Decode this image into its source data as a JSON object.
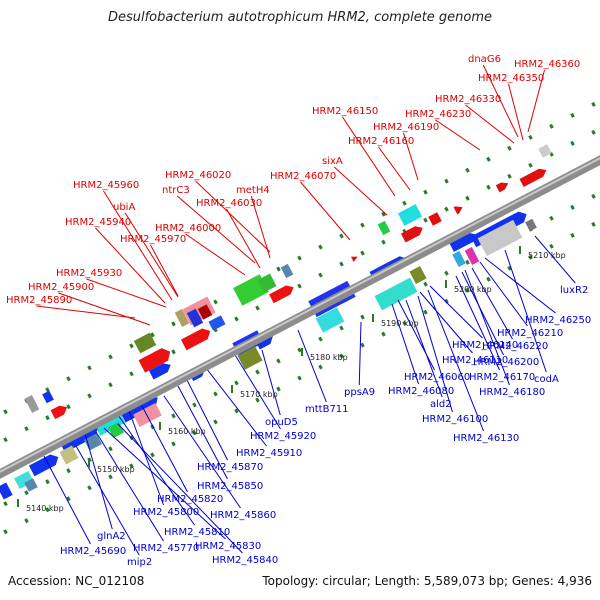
{
  "title": "Desulfobacterium autotrophicum HRM2, complete genome",
  "footer": {
    "accession": "Accession: NC_012108",
    "summary": "Topology: circular; Length: 5,589,073 bp; Genes: 4,936"
  },
  "colors": {
    "top_labels": "#dd0000",
    "bottom_labels": "#0000cc",
    "backbone": "#8c8c8c"
  },
  "kbp_labels": [
    "5140 kbp",
    "5150 kbp",
    "5160 kbp",
    "5170 kbp",
    "5180 kbp",
    "5190 kbp",
    "5200 kbp",
    "5210 kbp"
  ],
  "top_labels": [
    "dnaG6",
    "HRM2_46360",
    "HRM2_46350",
    "HRM2_46330",
    "HRM2_46230",
    "HRM2_46150",
    "HRM2_46190",
    "HRM2_46160",
    "sixA",
    "HRM2_46020",
    "HRM2_46070",
    "ntrC3",
    "metH4",
    "HRM2_45960",
    "HRM2_46030",
    "ubiA",
    "HRM2_46000",
    "HRM2_45940",
    "HRM2_45970",
    "HRM2_45930",
    "HRM2_45900",
    "HRM2_45890"
  ],
  "bottom_labels": [
    "luxR2",
    "HRM2_46250",
    "HRM2_46210",
    "HRM2_46220",
    "HRM2_46140",
    "HRM2_46200",
    "HRM2_46110",
    "codA",
    "HRM2_46170",
    "HRM2_46060",
    "HRM2_46180",
    "HRM2_46080",
    "ald2",
    "HRM2_46100",
    "HRM2_46130",
    "ppsA9",
    "mttB711",
    "opuD5",
    "HRM2_45920",
    "HRM2_45910",
    "HRM2_45870",
    "HRM2_45850",
    "HRM2_45860",
    "HRM2_45820",
    "HRM2_45800",
    "HRM2_45810",
    "glnA2",
    "HRM2_45830",
    "HRM2_45840",
    "HRM2_45770",
    "mip2",
    "HRM2_45690"
  ]
}
